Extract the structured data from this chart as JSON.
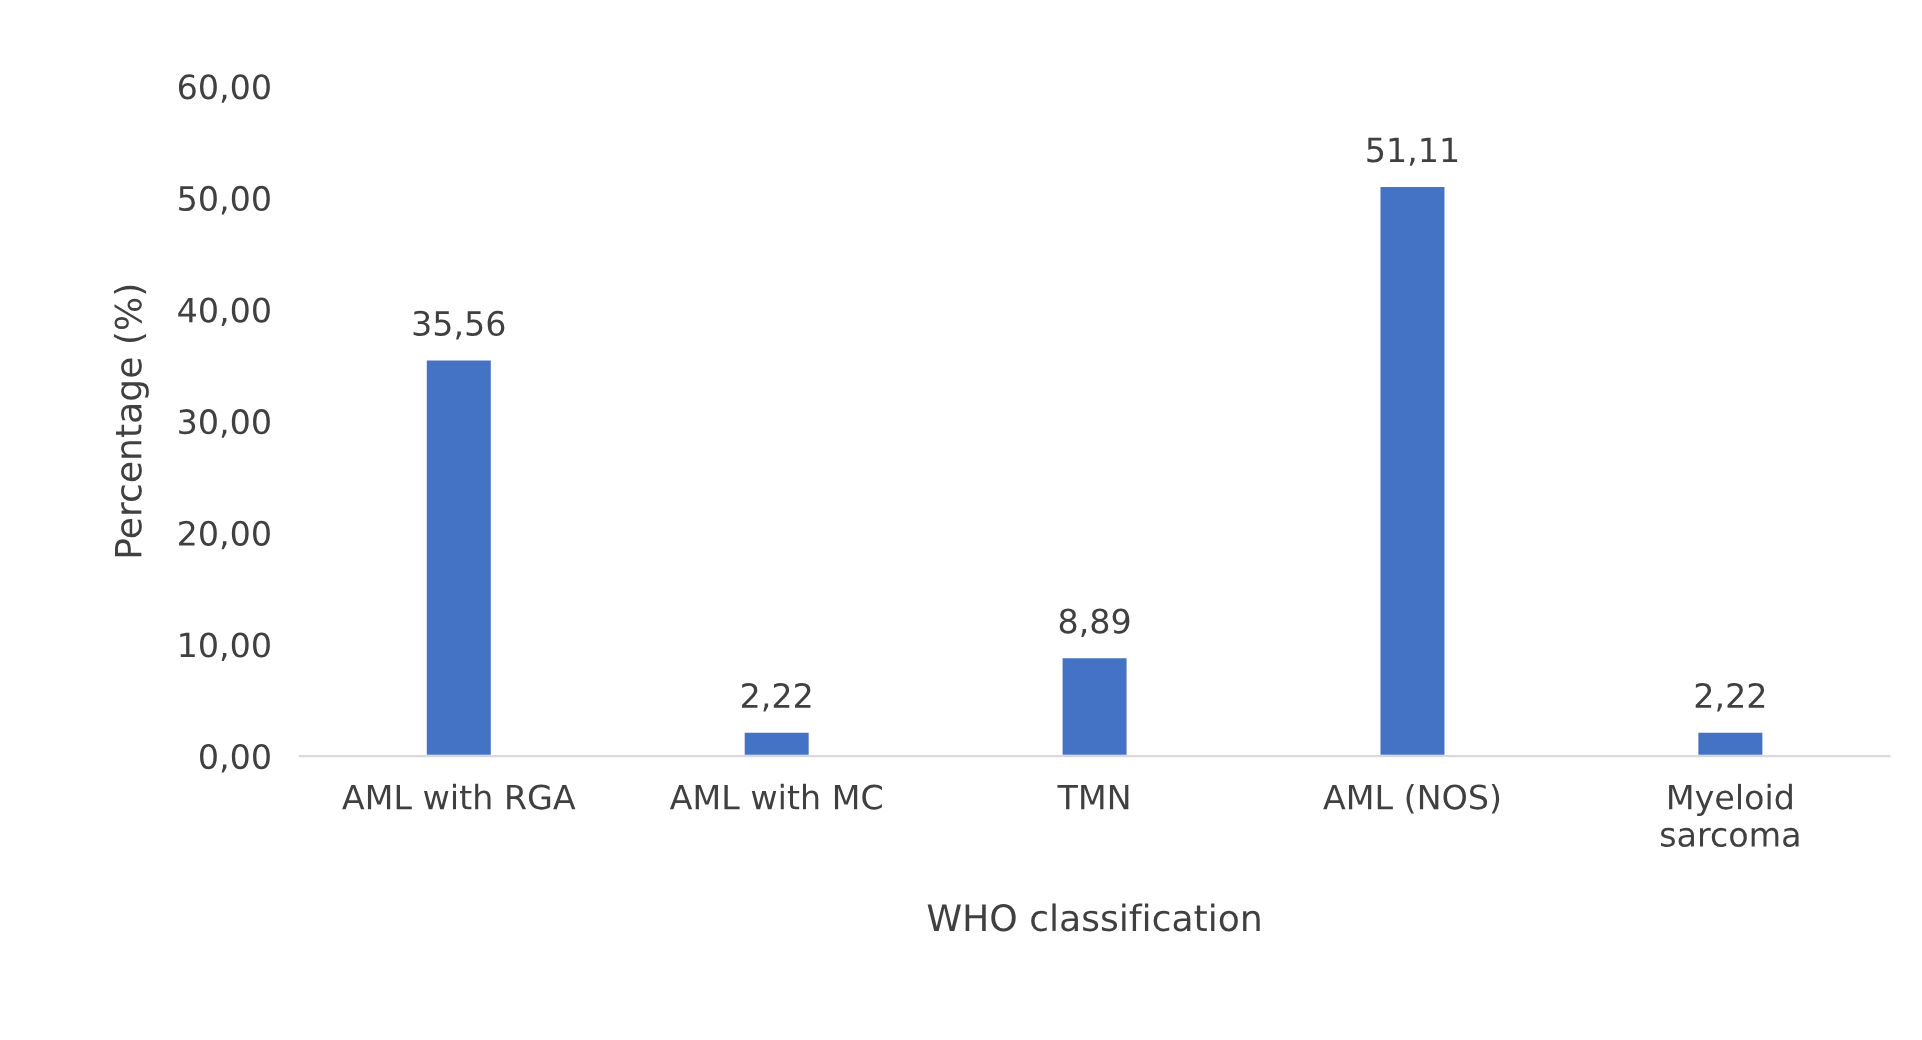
{
  "chart_data": {
    "type": "bar",
    "xlabel": "WHO classification",
    "ylabel": "Percentage (%)",
    "categories": [
      "AML with RGA",
      "AML with MC",
      "TMN",
      "AML (NOS)",
      "Myeloid sarcoma"
    ],
    "values": [
      35.56,
      2.22,
      8.89,
      51.11,
      2.22
    ],
    "value_labels": [
      "35,56",
      "2,22",
      "8,89",
      "51,11",
      "2,22"
    ],
    "color": "#4472c4",
    "ylim": [
      0,
      60
    ],
    "yticks": [
      {
        "value": 0,
        "label": "0,00"
      },
      {
        "value": 10,
        "label": "10,00"
      },
      {
        "value": 20,
        "label": "20,00"
      },
      {
        "value": 30,
        "label": "30,00"
      },
      {
        "value": 40,
        "label": "40,00"
      },
      {
        "value": 50,
        "label": "50,00"
      },
      {
        "value": 60,
        "label": "60,00"
      }
    ],
    "grid": false
  }
}
